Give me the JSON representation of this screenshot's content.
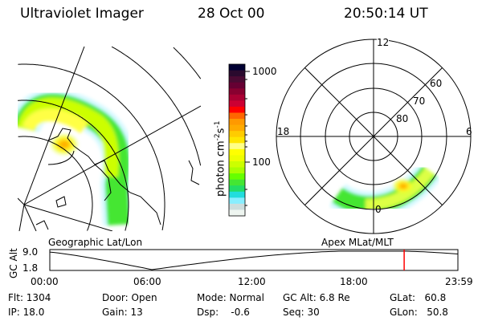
{
  "header": {
    "instrument": "Ultraviolet Imager",
    "date": "28 Oct 00",
    "time": "20:50:14 UT"
  },
  "colorbar": {
    "label": "photon cm",
    "label_sup1": "-2",
    "label_mid": "s",
    "label_sup2": "-1",
    "ticks": [
      "1000",
      "100"
    ],
    "colors": [
      "#000033",
      "#2a0a2e",
      "#4a0a33",
      "#660033",
      "#880030",
      "#aa0033",
      "#cc0033",
      "#ff0000",
      "#ff6600",
      "#ff9900",
      "#ffaa00",
      "#ffcc00",
      "#ffe600",
      "#ffff88",
      "#ffff00",
      "#eeff00",
      "#ccff00",
      "#aaff00",
      "#66ff00",
      "#44e633",
      "#22dd66",
      "#22dddd",
      "#88eeff",
      "#ccdddd",
      "#eef5f0"
    ]
  },
  "polar_plot": {
    "mlt_labels": [
      "12",
      "18",
      "6",
      "0"
    ],
    "lat_labels": [
      "60",
      "70",
      "80"
    ]
  },
  "map_label": "Geographic Lat/Lon",
  "polar_label": "Apex MLat/MLT",
  "altitude_plot": {
    "ylabel": "GC Alt",
    "yticks": [
      "9.0",
      "1.8"
    ],
    "xticks": [
      "00:00",
      "06:00",
      "12:00",
      "18:00",
      "23:59"
    ],
    "current_time_hours": 20.84,
    "marker_color": "#ff0000"
  },
  "info": {
    "flt": "Flt: 1304",
    "ip": "IP: 18.0",
    "door": "Door: Open",
    "gain": "Gain: 13",
    "mode": "Mode: Normal",
    "dsp": "Dsp:    -0.6",
    "gcalt": "GC Alt: 6.8 Re",
    "seq": "Seq: 30",
    "glat": "GLat:   60.8",
    "glon": "GLon:   50.8"
  }
}
